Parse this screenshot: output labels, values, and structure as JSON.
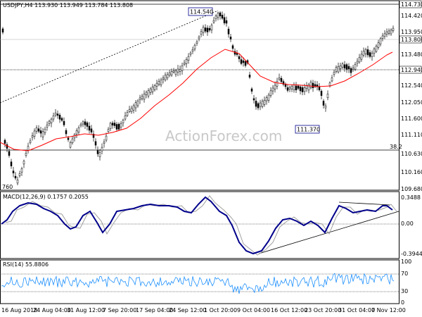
{
  "main": {
    "header": "USDJPY,H4  113.930 113.949 113.784 113.808",
    "watermark": "ActionForex.com",
    "price_labels": [
      "114.730",
      "114.420",
      "113.950",
      "113.808",
      "113.480",
      "112.940",
      "112.540",
      "112.050",
      "111.600",
      "111.110",
      "110.630",
      "110.160",
      "109.680"
    ],
    "annotations": {
      "high": "114.540",
      "low": "111.370",
      "left": "760",
      "fib": "38.2"
    },
    "colors": {
      "price": "#000000",
      "ma": "#ff0000",
      "macd": "#00008b",
      "signal": "#a0a0a0",
      "rsi": "#1e90ff",
      "trend": "#000000"
    }
  },
  "macd": {
    "header": "MACD(12,26,9)  0.1757  0.2055",
    "labels": [
      "0.3488",
      "0.00",
      "-0.3944"
    ]
  },
  "rsi": {
    "header": "RSI(14)  55.8806",
    "labels": [
      "100",
      "70",
      "30",
      "0"
    ]
  },
  "time_axis": [
    "16 Aug 2018",
    "24 Aug 04:00",
    "31 Aug 12:00",
    "7 Sep 20:00",
    "17 Sep 04:00",
    "24 Sep 12:00",
    "1 Oct 20:00",
    "9 Oct 04:00",
    "16 Oct 12:00",
    "23 Oct 20:00",
    "31 Oct 04:00",
    "7 Nov 12:00"
  ]
}
